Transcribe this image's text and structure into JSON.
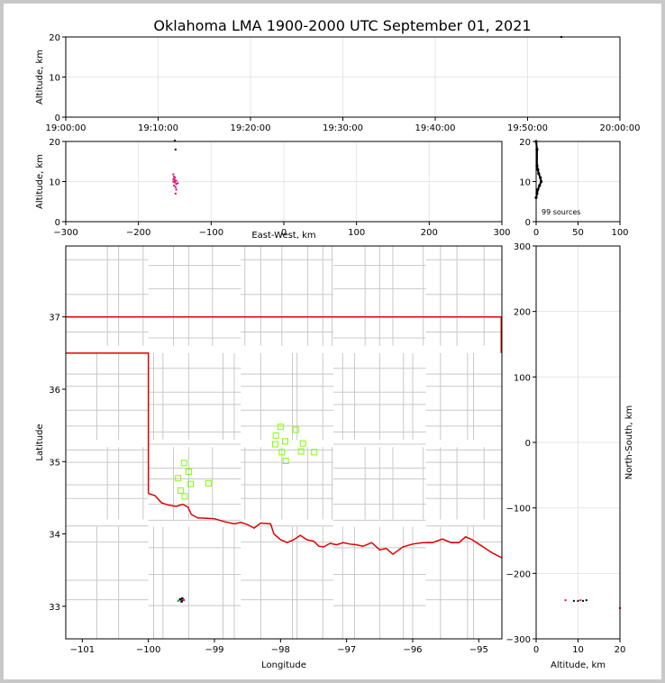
{
  "figure": {
    "title": "Oklahoma LMA 1900-2000 UTC September 01, 2021",
    "source_count_label": "99 sources"
  },
  "colors": {
    "state_border": "#e00000",
    "county_lines": "#c8c8c8",
    "station_marker": "#7fff00",
    "grid": "#e6e6e6",
    "source_magenta": "#e0006e",
    "source_black": "#000000"
  },
  "chart_data": [
    {
      "id": "time_height",
      "type": "scatter",
      "title": "",
      "xlabel": "",
      "ylabel": "Altitude, km",
      "xlim": [
        "19:00:00",
        "20:00:00"
      ],
      "ylim": [
        0,
        20
      ],
      "xticks": [
        "19:00:00",
        "19:10:00",
        "19:20:00",
        "19:30:00",
        "19:40:00",
        "19:50:00",
        "20:00:00"
      ],
      "yticks": [
        0,
        10,
        20
      ],
      "grid": true,
      "points": [
        {
          "t": "19:53:40",
          "alt": 20.0
        }
      ]
    },
    {
      "id": "ew_altitude",
      "type": "scatter",
      "xlabel": "East-West, km",
      "ylabel": "Altitude, km",
      "xlim": [
        -300,
        300
      ],
      "ylim": [
        0,
        20
      ],
      "xticks": [
        -300,
        -200,
        -100,
        0,
        100,
        200,
        300
      ],
      "yticks": [
        0,
        10,
        20
      ],
      "grid": true,
      "points": [
        {
          "x": -150,
          "alt": 20.2
        },
        {
          "x": -149,
          "alt": 18.0
        },
        {
          "x": -152,
          "alt": 11.8
        },
        {
          "x": -151,
          "alt": 11.2
        },
        {
          "x": -150,
          "alt": 11.0
        },
        {
          "x": -152,
          "alt": 10.6
        },
        {
          "x": -150,
          "alt": 10.4
        },
        {
          "x": -148,
          "alt": 10.2
        },
        {
          "x": -152,
          "alt": 10.0
        },
        {
          "x": -150,
          "alt": 9.8
        },
        {
          "x": -146,
          "alt": 9.6
        },
        {
          "x": -148,
          "alt": 9.4
        },
        {
          "x": -151,
          "alt": 9.0
        },
        {
          "x": -149,
          "alt": 8.6
        },
        {
          "x": -148,
          "alt": 8.0
        },
        {
          "x": -149,
          "alt": 7.0
        }
      ]
    },
    {
      "id": "altitude_histogram",
      "type": "line",
      "xlabel": "",
      "ylabel": "",
      "xlim": [
        0,
        100
      ],
      "ylim": [
        0,
        20
      ],
      "xticks": [
        0,
        50,
        100
      ],
      "yticks": [
        0,
        10,
        20
      ],
      "grid": true,
      "points": [
        {
          "count": 0,
          "alt": 20
        },
        {
          "count": 1,
          "alt": 18
        },
        {
          "count": 1,
          "alt": 14
        },
        {
          "count": 2,
          "alt": 13
        },
        {
          "count": 3,
          "alt": 12
        },
        {
          "count": 5,
          "alt": 11
        },
        {
          "count": 6,
          "alt": 10
        },
        {
          "count": 4,
          "alt": 9
        },
        {
          "count": 2,
          "alt": 8
        },
        {
          "count": 1,
          "alt": 7
        },
        {
          "count": 0,
          "alt": 6
        }
      ]
    },
    {
      "id": "plan_view",
      "type": "map",
      "xlabel": "Longitude",
      "ylabel": "Latitude",
      "xlim": [
        -101.25,
        -94.65
      ],
      "ylim": [
        32.55,
        37.98
      ],
      "xticks": [
        -101,
        -100,
        -99,
        -98,
        -97,
        -96,
        -95
      ],
      "yticks": [
        33,
        34,
        35,
        36,
        37
      ],
      "stations": [
        {
          "lon": -99.46,
          "lat": 34.98
        },
        {
          "lon": -99.39,
          "lat": 34.86
        },
        {
          "lon": -99.55,
          "lat": 34.77
        },
        {
          "lon": -99.36,
          "lat": 34.69
        },
        {
          "lon": -99.51,
          "lat": 34.6
        },
        {
          "lon": -99.45,
          "lat": 34.52
        },
        {
          "lon": -99.09,
          "lat": 34.7
        },
        {
          "lon": -98.0,
          "lat": 35.48
        },
        {
          "lon": -98.07,
          "lat": 35.36
        },
        {
          "lon": -98.08,
          "lat": 35.24
        },
        {
          "lon": -97.77,
          "lat": 35.44
        },
        {
          "lon": -97.93,
          "lat": 35.28
        },
        {
          "lon": -97.98,
          "lat": 35.13
        },
        {
          "lon": -97.92,
          "lat": 35.01
        },
        {
          "lon": -97.66,
          "lat": 35.25
        },
        {
          "lon": -97.69,
          "lat": 35.14
        },
        {
          "lon": -97.49,
          "lat": 35.13
        }
      ],
      "sources": [
        {
          "lon": -99.52,
          "lat": 33.1,
          "color": "black"
        },
        {
          "lon": -99.49,
          "lat": 33.11,
          "color": "black"
        },
        {
          "lon": -99.47,
          "lat": 33.09,
          "color": "magenta"
        },
        {
          "lon": -99.55,
          "lat": 33.08,
          "color": "green"
        },
        {
          "lon": -99.5,
          "lat": 33.07,
          "color": "black"
        }
      ]
    },
    {
      "id": "ns_altitude",
      "type": "scatter",
      "xlabel": "Altitude, km",
      "ylabel": "North-South, km",
      "xlim": [
        0,
        20
      ],
      "ylim": [
        -300,
        300
      ],
      "xticks": [
        0,
        10,
        20
      ],
      "yticks": [
        -300,
        -200,
        -100,
        0,
        100,
        200,
        300
      ],
      "grid": true,
      "points": [
        {
          "alt": 7.0,
          "y": -241
        },
        {
          "alt": 9.0,
          "y": -242
        },
        {
          "alt": 10.0,
          "y": -242
        },
        {
          "alt": 10.6,
          "y": -241
        },
        {
          "alt": 11.2,
          "y": -242
        },
        {
          "alt": 12.0,
          "y": -241
        },
        {
          "alt": 20.0,
          "y": -253
        }
      ]
    }
  ]
}
